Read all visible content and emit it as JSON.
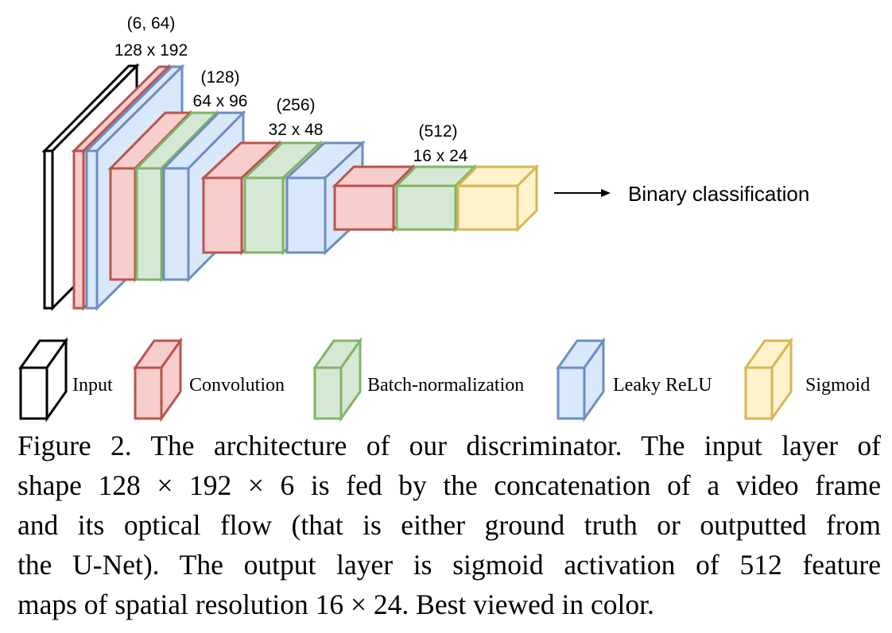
{
  "colors": {
    "input": {
      "stroke": "#000000",
      "fill": "#ffffff"
    },
    "conv": {
      "stroke": "#b85450",
      "fill": "#f8cecc"
    },
    "bn": {
      "stroke": "#82b366",
      "fill": "#d5e8d4"
    },
    "relu": {
      "stroke": "#6c8ebf",
      "fill": "#dae8fc"
    },
    "sigmoid": {
      "stroke": "#d6b656",
      "fill": "#fff2cc"
    }
  },
  "stages": [
    {
      "channels": "(6, 64)",
      "resolution": "128 x 192"
    },
    {
      "channels": "(128)",
      "resolution": "64 x 96"
    },
    {
      "channels": "(256)",
      "resolution": "32 x 48"
    },
    {
      "channels": "(512)",
      "resolution": "16 x 24"
    }
  ],
  "output_label": "Binary classification",
  "legend": [
    {
      "key": "input",
      "label": "Input"
    },
    {
      "key": "conv",
      "label": "Convolution"
    },
    {
      "key": "bn",
      "label": "Batch-normalization"
    },
    {
      "key": "relu",
      "label": "Leaky ReLU"
    },
    {
      "key": "sigmoid",
      "label": "Sigmoid"
    }
  ],
  "caption_lines": [
    "Figure 2. The architecture of our discriminator. The input layer of",
    "shape 128 × 192 × 6 is fed by the concatenation of a video frame",
    "and its optical flow (that is either ground truth or outputted from",
    "the U-Net). The output layer is sigmoid activation of 512 feature",
    "maps of spatial resolution 16 × 24. Best viewed in color."
  ]
}
